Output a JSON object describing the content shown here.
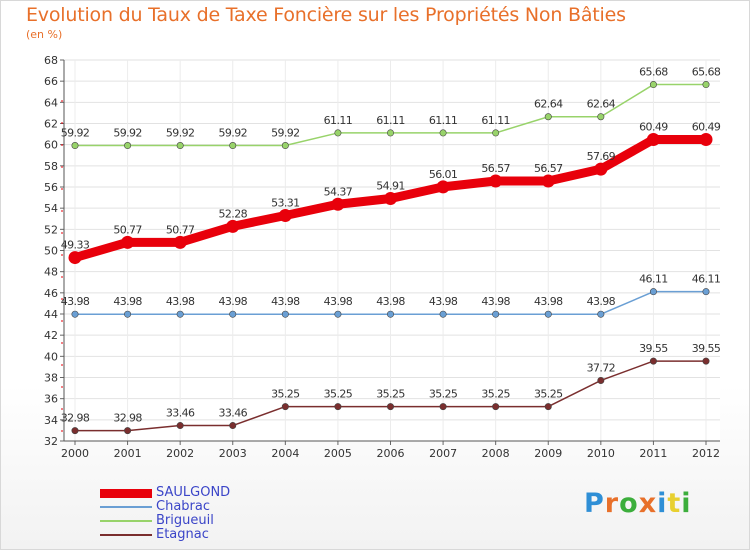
{
  "title": "Evolution du Taux de Taxe Foncière sur les Propriétés Non Bâties",
  "subtitle": "(en %)",
  "logo": {
    "letters": [
      "P",
      "r",
      "o",
      "x",
      "i",
      "t",
      "i"
    ],
    "colors": [
      "#2f8fd6",
      "#e8702a",
      "#3cae3c",
      "#e8702a",
      "#2f8fd6",
      "#e8d030",
      "#3cae3c"
    ]
  },
  "chart_data": {
    "type": "line",
    "title": "Evolution du Taux de Taxe Foncière sur les Propriétés Non Bâties",
    "ylabel": "(en %)",
    "x": [
      "2000",
      "2001",
      "2002",
      "2003",
      "2004",
      "2005",
      "2006",
      "2007",
      "2008",
      "2009",
      "2010",
      "2011",
      "2012"
    ],
    "ylim": [
      32,
      68
    ],
    "yticks": [
      32,
      34,
      36,
      38,
      40,
      42,
      44,
      46,
      48,
      50,
      52,
      54,
      56,
      58,
      60,
      62,
      64,
      66,
      68
    ],
    "grid": true,
    "legend_position": "bottom-left",
    "series": [
      {
        "name": "SAULGOND",
        "color": "#e8000b",
        "width": 9,
        "values": [
          49.33,
          50.77,
          50.77,
          52.28,
          53.31,
          54.37,
          54.91,
          56.01,
          56.57,
          56.57,
          57.69,
          60.49,
          60.49
        ],
        "labels": [
          "49.33",
          "50.77",
          "50.77",
          "52.28",
          "53.31",
          "54.37",
          "54.91",
          "56.01",
          "56.57",
          "56.57",
          "57.69",
          "60.49",
          "60.49"
        ]
      },
      {
        "name": "Chabrac",
        "color": "#6a9fd4",
        "width": 1.5,
        "values": [
          43.98,
          43.98,
          43.98,
          43.98,
          43.98,
          43.98,
          43.98,
          43.98,
          43.98,
          43.98,
          43.98,
          46.11,
          46.11
        ],
        "labels": [
          "43.98",
          "43.98",
          "43.98",
          "43.98",
          "43.98",
          "43.98",
          "43.98",
          "43.98",
          "43.98",
          "43.98",
          "43.98",
          "46.11",
          "46.11"
        ]
      },
      {
        "name": "Brigueuil",
        "color": "#98d36a",
        "width": 1.5,
        "values": [
          59.92,
          59.92,
          59.92,
          59.92,
          59.92,
          61.11,
          61.11,
          61.11,
          61.11,
          62.64,
          62.64,
          65.68,
          65.68
        ],
        "labels": [
          "59.92",
          "59.92",
          "59.92",
          "59.92",
          "59.92",
          "61.11",
          "61.11",
          "61.11",
          "61.11",
          "62.64",
          "62.64",
          "65.68",
          "65.68"
        ]
      },
      {
        "name": "Etagnac",
        "color": "#7a2e2e",
        "width": 1.5,
        "values": [
          32.98,
          32.98,
          33.46,
          33.46,
          35.25,
          35.25,
          35.25,
          35.25,
          35.25,
          35.25,
          37.72,
          39.55,
          39.55
        ],
        "labels": [
          "32.98",
          "32.98",
          "33.46",
          "33.46",
          "35.25",
          "35.25",
          "35.25",
          "35.25",
          "35.25",
          "35.25",
          "37.72",
          "39.55",
          "39.55"
        ]
      }
    ]
  }
}
